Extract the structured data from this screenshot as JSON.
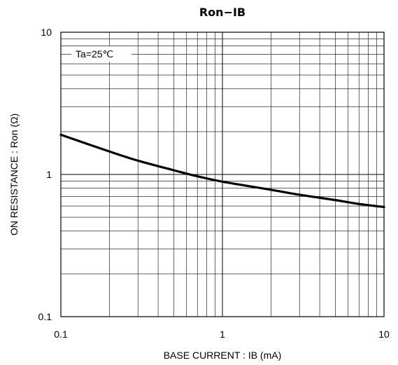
{
  "chart_data": {
    "type": "line",
    "title": "Ron−IB",
    "xlabel": "BASE CURRENT : IB (mA)",
    "ylabel": "ON RESISTANCE : Ron (Ω)",
    "x_scale": "log",
    "y_scale": "log",
    "xlim": [
      0.1,
      10
    ],
    "ylim": [
      0.1,
      10
    ],
    "x_ticks": [
      "0.1",
      "1",
      "10"
    ],
    "y_ticks": [
      "0.1",
      "1",
      "10"
    ],
    "grid": true,
    "annotation": "Ta=25℃",
    "series": [
      {
        "x": [
          0.1,
          0.2,
          0.3,
          0.5,
          0.7,
          1,
          2,
          3,
          5,
          7,
          10
        ],
        "y": [
          1.9,
          1.45,
          1.25,
          1.07,
          0.97,
          0.89,
          0.78,
          0.72,
          0.66,
          0.62,
          0.59
        ]
      }
    ],
    "line_color": "#000000"
  }
}
